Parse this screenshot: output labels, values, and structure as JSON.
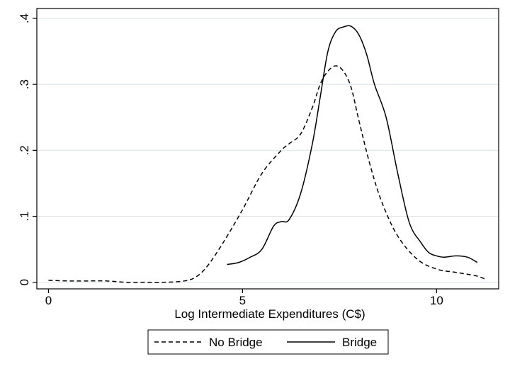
{
  "chart_data": {
    "type": "line",
    "title": "",
    "xlabel": "Log Intermediate Expenditures (C$)",
    "ylabel": "",
    "xlim": [
      -0.3,
      11.6
    ],
    "ylim": [
      -0.01,
      0.415
    ],
    "xticks": [
      0,
      5,
      10
    ],
    "xtick_labels": [
      "0",
      "5",
      "10"
    ],
    "yticks": [
      0,
      0.1,
      0.2,
      0.3,
      0.4
    ],
    "ytick_labels": [
      "0",
      ".1",
      ".2",
      ".3",
      ".4"
    ],
    "grid": true,
    "legend_position": "bottom",
    "series": [
      {
        "name": "No Bridge",
        "style": "dashed",
        "color": "#000000",
        "x": [
          0,
          0.5,
          1,
          1.5,
          2,
          2.5,
          3,
          3.5,
          3.8,
          4.1,
          4.5,
          5,
          5.5,
          6,
          6.2,
          6.5,
          6.8,
          7,
          7.2,
          7.4,
          7.6,
          7.8,
          8,
          8.3,
          8.6,
          9,
          9.5,
          10,
          10.5,
          11,
          11.25
        ],
        "values": [
          0.003,
          0.002,
          0.002,
          0.002,
          0,
          0,
          0,
          0.002,
          0.008,
          0.025,
          0.06,
          0.11,
          0.165,
          0.2,
          0.21,
          0.225,
          0.265,
          0.3,
          0.32,
          0.328,
          0.32,
          0.295,
          0.245,
          0.175,
          0.12,
          0.07,
          0.035,
          0.02,
          0.015,
          0.01,
          0.005
        ]
      },
      {
        "name": "Bridge",
        "style": "solid",
        "color": "#000000",
        "x": [
          4.6,
          4.9,
          5.2,
          5.5,
          5.8,
          6,
          6.2,
          6.5,
          6.8,
          7,
          7.2,
          7.4,
          7.6,
          7.8,
          8,
          8.2,
          8.4,
          8.7,
          9,
          9.3,
          9.6,
          9.8,
          10,
          10.2,
          10.5,
          10.8,
          11.05
        ],
        "values": [
          0.027,
          0.03,
          0.038,
          0.05,
          0.085,
          0.092,
          0.095,
          0.135,
          0.21,
          0.28,
          0.35,
          0.38,
          0.387,
          0.388,
          0.375,
          0.345,
          0.3,
          0.25,
          0.165,
          0.09,
          0.06,
          0.045,
          0.04,
          0.038,
          0.04,
          0.038,
          0.03
        ]
      }
    ]
  }
}
